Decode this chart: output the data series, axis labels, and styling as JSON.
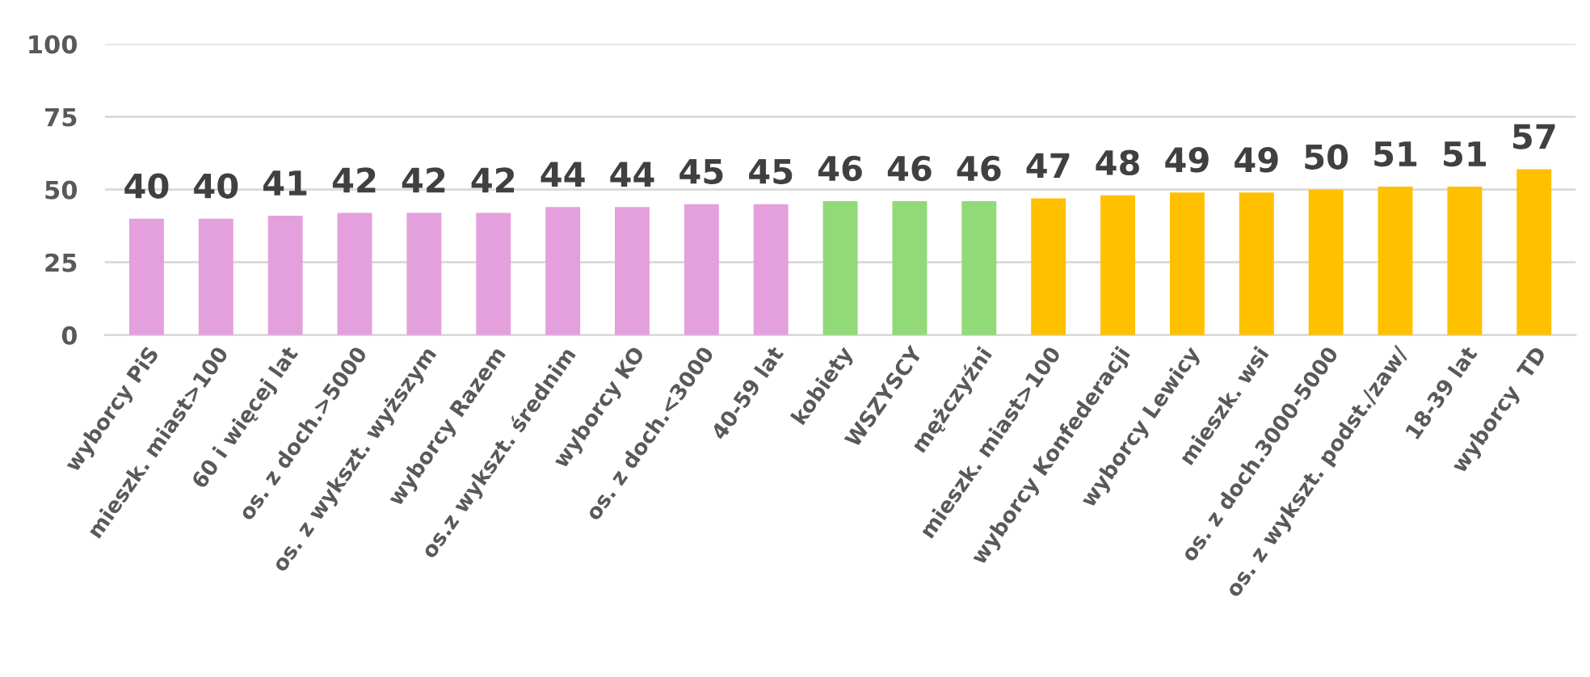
{
  "chart_data": {
    "type": "bar",
    "categories": [
      "wyborcy PiS",
      "mieszk. miast>100",
      "60 i więcej lat",
      "os. z doch.>5000",
      "os. z wykszt. wyższym",
      "wyborcy Razem",
      "os.z wykszt. średnim",
      "wyborcy KO",
      "os. z doch.<3000",
      "40-59 lat",
      "kobiety",
      "WSZYSCY",
      "mężczyźni",
      "mieszk. miast>100",
      "wyborcy Konfederacji",
      "wyborcy Lewicy",
      "mieszk. wsi",
      "os. z doch.3000-5000",
      "os. z wykszt. podst./zaw/",
      "18-39 lat",
      "wyborcy  TD"
    ],
    "values": [
      40,
      40,
      41,
      42,
      42,
      42,
      44,
      44,
      45,
      45,
      46,
      46,
      46,
      47,
      48,
      49,
      49,
      50,
      51,
      51,
      57
    ],
    "colors": [
      "#e3a0dc",
      "#e3a0dc",
      "#e3a0dc",
      "#e3a0dc",
      "#e3a0dc",
      "#e3a0dc",
      "#e3a0dc",
      "#e3a0dc",
      "#e3a0dc",
      "#e3a0dc",
      "#92d978",
      "#92d978",
      "#92d978",
      "#ffc000",
      "#ffc000",
      "#ffc000",
      "#ffc000",
      "#ffc000",
      "#ffc000",
      "#ffc000",
      "#ffc000"
    ],
    "data_labels": true,
    "ylim": [
      0,
      100
    ],
    "yticks": [
      0,
      25,
      50,
      75,
      100
    ],
    "grid": "y"
  }
}
